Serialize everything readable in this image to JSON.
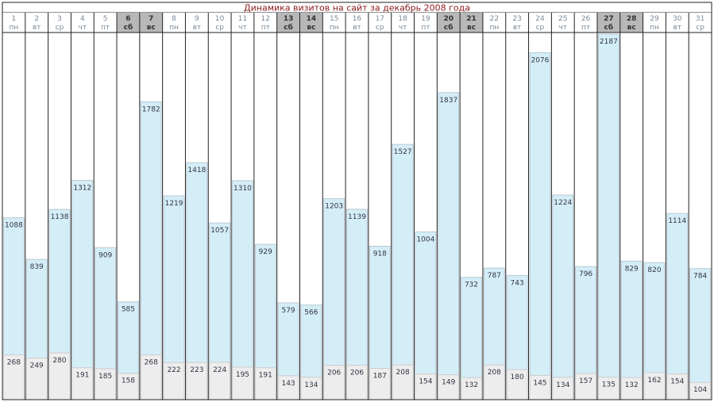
{
  "chart_data": {
    "type": "bar",
    "title": "Динамика визитов на сайт за декабрь 2008 года",
    "xlabel": "",
    "ylabel": "",
    "ylim": [
      0,
      2187
    ],
    "categories": [
      "1",
      "2",
      "3",
      "4",
      "5",
      "6",
      "7",
      "8",
      "9",
      "10",
      "11",
      "12",
      "13",
      "14",
      "15",
      "16",
      "17",
      "18",
      "19",
      "20",
      "21",
      "22",
      "23",
      "24",
      "25",
      "26",
      "27",
      "28",
      "29",
      "30",
      "31"
    ],
    "weekdays": [
      "пн",
      "вт",
      "ср",
      "чт",
      "пт",
      "сб",
      "вс",
      "пн",
      "вт",
      "ср",
      "чт",
      "пт",
      "сб",
      "вс",
      "пн",
      "вт",
      "ср",
      "чт",
      "пт",
      "сб",
      "вс",
      "пн",
      "вт",
      "ср",
      "чт",
      "пт",
      "сб",
      "вс",
      "пн",
      "вт",
      "ср"
    ],
    "weekend_days": [
      "6",
      "7",
      "13",
      "14",
      "20",
      "21",
      "27",
      "28"
    ],
    "series": [
      {
        "key": "total",
        "values": [
          1088,
          839,
          1138,
          1312,
          909,
          585,
          1782,
          1219,
          1418,
          1057,
          1310,
          929,
          579,
          566,
          1203,
          1139,
          918,
          1527,
          1004,
          1837,
          732,
          787,
          743,
          2076,
          1224,
          796,
          2187,
          829,
          820,
          1114,
          784
        ]
      },
      {
        "key": "secondary",
        "values": [
          268,
          249,
          280,
          191,
          185,
          158,
          268,
          222,
          223,
          224,
          195,
          191,
          143,
          134,
          206,
          206,
          187,
          208,
          154,
          149,
          132,
          208,
          180,
          145,
          134,
          157,
          135,
          132,
          162,
          154,
          104
        ]
      }
    ],
    "colors": {
      "title_text": "#8b1a1a",
      "header_text": "#7a8a99",
      "weekend_header_bg": "#b8b8b8",
      "weekend_header_text": "#333333",
      "bar_fill": "#d4eef8",
      "bar_stroke": "#b9c8d2",
      "secondary_fill": "#ededed",
      "secondary_stroke": "#cccccc",
      "value_text": "#333344",
      "column_divider": "#222222"
    }
  }
}
